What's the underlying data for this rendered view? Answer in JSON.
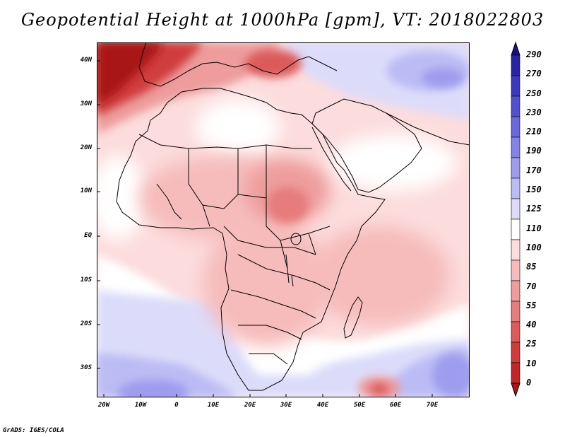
{
  "title": "Geopotential Height at 1000hPa [gpm], VT: 2018022803",
  "axes": {
    "lat_labels": [
      "40N",
      "30N",
      "20N",
      "10N",
      "EQ",
      "10S",
      "20S",
      "30S"
    ],
    "lon_labels": [
      "20W",
      "10W",
      "0",
      "10E",
      "20E",
      "30E",
      "40E",
      "50E",
      "60E",
      "70E"
    ]
  },
  "colorbar": {
    "levels": [
      "290",
      "270",
      "250",
      "230",
      "210",
      "190",
      "170",
      "150",
      "125",
      "110",
      "100",
      "85",
      "70",
      "55",
      "40",
      "25",
      "10",
      "0"
    ],
    "colors": [
      "#1a0f8a",
      "#2a23a8",
      "#3c38c0",
      "#5250d0",
      "#6a68dc",
      "#8482e6",
      "#9e9cee",
      "#bcbcf4",
      "#dcdcfa",
      "#ffffff",
      "#fcdcdc",
      "#f6bcbc",
      "#ee9c9c",
      "#e67c7c",
      "#dc5a5a",
      "#d03c3c",
      "#c22626",
      "#a81616"
    ]
  },
  "chart_data": {
    "type": "heatmap",
    "title": "Geopotential Height at 1000hPa [gpm], VT: 2018022803",
    "variable": "Geopotential Height at 1000hPa",
    "units": "gpm",
    "valid_time": "2018022803",
    "lon_range": [
      -22,
      80
    ],
    "lat_range": [
      -36,
      44
    ],
    "xlabel": "",
    "ylabel": "",
    "contour_levels": [
      0,
      10,
      25,
      40,
      55,
      70,
      85,
      100,
      110,
      125,
      150,
      170,
      190,
      210,
      230,
      250,
      270,
      290
    ]
  },
  "footer": "GrADS: IGES/COLA"
}
